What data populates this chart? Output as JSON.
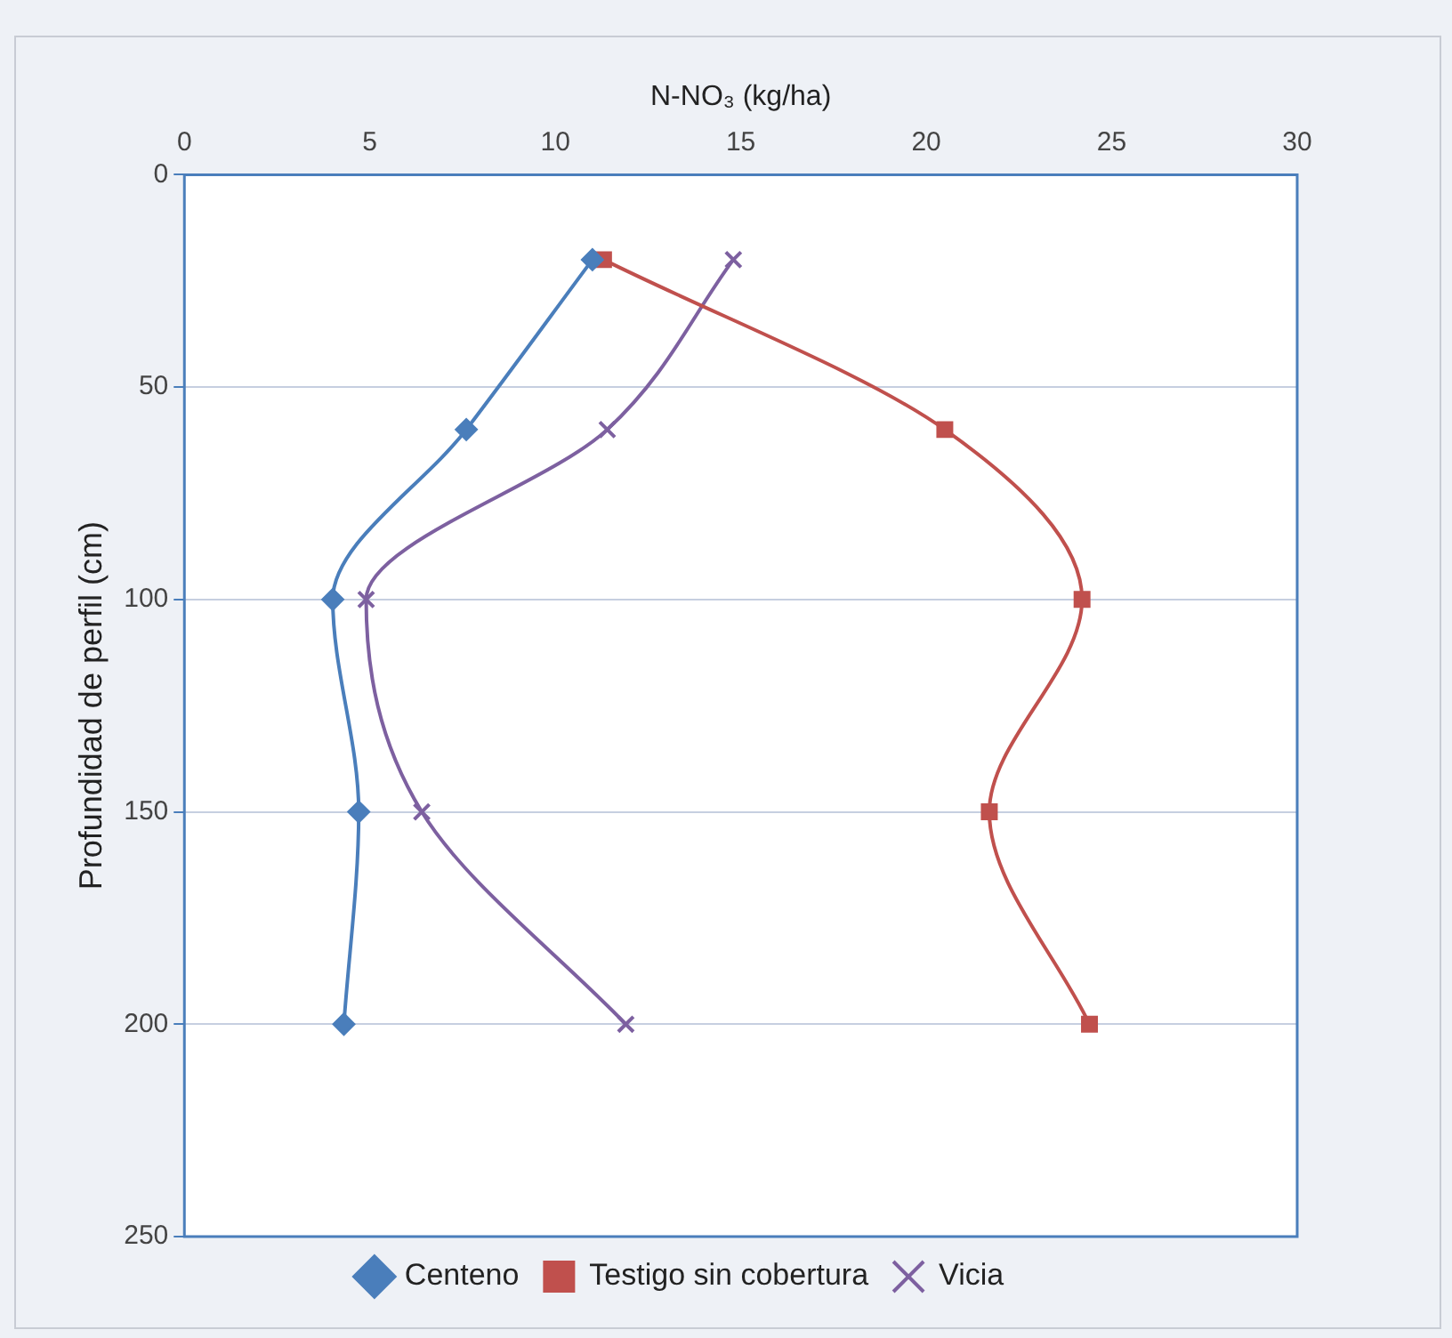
{
  "chart_data": {
    "type": "line",
    "xlabel": "N-NO₃ (kg/ha)",
    "ylabel": "Profundidad de perfil (cm)",
    "xlim": [
      0,
      30
    ],
    "xticks": [
      0,
      5,
      10,
      15,
      20,
      25,
      30
    ],
    "ylim": [
      250,
      0
    ],
    "yticks": [
      0,
      50,
      100,
      150,
      200,
      250
    ],
    "grid": "y",
    "legend": "bottom",
    "series": [
      {
        "name": "Centeno",
        "color": "#4a7ebb",
        "marker": "diamond",
        "x": [
          11,
          7.6,
          4,
          4.7,
          4.3
        ],
        "values": [
          20,
          60,
          100,
          150,
          200
        ]
      },
      {
        "name": "Testigo sin cobertura",
        "color": "#c0504d",
        "marker": "square",
        "x": [
          11.3,
          20.5,
          24.2,
          21.7,
          24.4
        ],
        "values": [
          20,
          60,
          100,
          150,
          200
        ]
      },
      {
        "name": "Vicia",
        "color": "#7d60a0",
        "marker": "cross",
        "x": [
          14.8,
          11.4,
          4.9,
          6.4,
          11.9
        ],
        "values": [
          20,
          60,
          100,
          150,
          200
        ]
      }
    ]
  }
}
